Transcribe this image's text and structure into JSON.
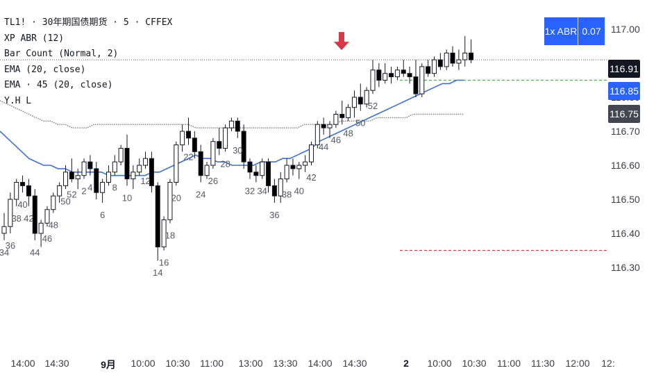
{
  "legend": {
    "symbol": "TL1! · 30年期国债期货 · 5 · CFFEX",
    "ind1": "XP ABR (12)",
    "ind2": "Bar Count (Normal, 2)",
    "ind3": "EMA (20, close)",
    "ind4": "EMA · 45 (20, close)",
    "ind5": "Y.H L"
  },
  "abr_badge": {
    "label": "1x ABR",
    "value": "0.07",
    "color": "#2962ff"
  },
  "price_tags": {
    "last": {
      "text": "116.91",
      "color": "#131722"
    },
    "ema20": {
      "text": "116.85",
      "color": "#2962ff"
    },
    "ema45": {
      "text": "116.75",
      "color": "#434651"
    }
  },
  "colors": {
    "up": "#ffffff",
    "down": "#000000",
    "ema20": "#3d6fd9",
    "ema45": "#787b86",
    "yhigh": "#4caf50",
    "ylow": "#e53945",
    "arrow": "#d93749",
    "count": "#555866"
  },
  "chart_data": {
    "type": "candlestick",
    "y_axis": {
      "range": [
        116.25,
        117.05
      ],
      "ticks": [
        "117.00",
        "116.90",
        "116.80",
        "116.70",
        "116.60",
        "116.50",
        "116.40",
        "116.30"
      ]
    },
    "x_axis": {
      "ticks": [
        "14:00",
        "14:30",
        "9月",
        "10:00",
        "10:30",
        "11:00",
        "13:00",
        "13:30",
        "14:00",
        "14:30",
        "2",
        "10:00",
        "10:30",
        "11:00",
        "11:30",
        "12:00",
        "12:"
      ]
    },
    "ohlc": [
      [
        116.4,
        116.46,
        116.38,
        116.42
      ],
      [
        116.42,
        116.52,
        116.4,
        116.5
      ],
      [
        116.5,
        116.56,
        116.48,
        116.55
      ],
      [
        116.55,
        116.57,
        116.52,
        116.54
      ],
      [
        116.54,
        116.56,
        116.48,
        116.51
      ],
      [
        116.51,
        116.53,
        116.38,
        116.4
      ],
      [
        116.4,
        116.44,
        116.36,
        116.43
      ],
      [
        116.43,
        116.48,
        116.42,
        116.47
      ],
      [
        116.47,
        116.52,
        116.46,
        116.51
      ],
      [
        116.51,
        116.55,
        116.49,
        116.54
      ],
      [
        116.54,
        116.6,
        116.53,
        116.58
      ],
      [
        116.58,
        116.62,
        116.55,
        116.56
      ],
      [
        116.56,
        116.59,
        116.53,
        116.57
      ],
      [
        116.57,
        116.62,
        116.56,
        116.61
      ],
      [
        116.61,
        116.63,
        116.57,
        116.59
      ],
      [
        116.59,
        116.61,
        116.5,
        116.52
      ],
      [
        116.52,
        116.56,
        116.49,
        116.55
      ],
      [
        116.55,
        116.6,
        116.54,
        116.58
      ],
      [
        116.58,
        116.63,
        116.57,
        116.61
      ],
      [
        116.61,
        116.66,
        116.6,
        116.65
      ],
      [
        116.65,
        116.69,
        116.54,
        116.56
      ],
      [
        116.56,
        116.6,
        116.53,
        116.58
      ],
      [
        116.58,
        116.62,
        116.57,
        116.6
      ],
      [
        116.6,
        116.64,
        116.59,
        116.62
      ],
      [
        116.62,
        116.64,
        116.52,
        116.54
      ],
      [
        116.54,
        116.55,
        116.32,
        116.36
      ],
      [
        116.36,
        116.45,
        116.35,
        116.44
      ],
      [
        116.44,
        116.56,
        116.43,
        116.55
      ],
      [
        116.55,
        116.67,
        116.54,
        116.66
      ],
      [
        116.66,
        116.72,
        116.64,
        116.7
      ],
      [
        116.7,
        116.74,
        116.66,
        116.68
      ],
      [
        116.68,
        116.7,
        116.62,
        116.64
      ],
      [
        116.64,
        116.66,
        116.55,
        116.57
      ],
      [
        116.57,
        116.61,
        116.56,
        116.6
      ],
      [
        116.6,
        116.68,
        116.59,
        116.67
      ],
      [
        116.67,
        116.71,
        116.63,
        116.65
      ],
      [
        116.65,
        116.72,
        116.64,
        116.71
      ],
      [
        116.71,
        116.74,
        116.7,
        116.73
      ],
      [
        116.73,
        116.74,
        116.68,
        116.7
      ],
      [
        116.7,
        116.72,
        116.59,
        116.61
      ],
      [
        116.61,
        116.62,
        116.56,
        116.58
      ],
      [
        116.58,
        116.6,
        116.55,
        116.57
      ],
      [
        116.57,
        116.62,
        116.56,
        116.61
      ],
      [
        116.61,
        116.62,
        116.52,
        116.54
      ],
      [
        116.54,
        116.56,
        116.49,
        116.51
      ],
      [
        116.51,
        116.58,
        116.49,
        116.56
      ],
      [
        116.56,
        116.62,
        116.55,
        116.6
      ],
      [
        116.6,
        116.62,
        116.57,
        116.59
      ],
      [
        116.59,
        116.61,
        116.56,
        116.6
      ],
      [
        116.6,
        116.63,
        116.58,
        116.61
      ],
      [
        116.61,
        116.67,
        116.6,
        116.66
      ],
      [
        116.66,
        116.73,
        116.65,
        116.72
      ],
      [
        116.72,
        116.74,
        116.69,
        116.71
      ],
      [
        116.71,
        116.73,
        116.68,
        116.72
      ],
      [
        116.72,
        116.76,
        116.71,
        116.75
      ],
      [
        116.75,
        116.79,
        116.72,
        116.74
      ],
      [
        116.74,
        116.78,
        116.73,
        116.77
      ],
      [
        116.77,
        116.82,
        116.74,
        116.8
      ],
      [
        116.8,
        116.84,
        116.76,
        116.78
      ],
      [
        116.78,
        116.83,
        116.77,
        116.82
      ],
      [
        116.82,
        116.91,
        116.81,
        116.88
      ],
      [
        116.88,
        116.9,
        116.83,
        116.85
      ],
      [
        116.85,
        116.9,
        116.84,
        116.87
      ],
      [
        116.87,
        116.89,
        116.84,
        116.86
      ],
      [
        116.86,
        116.89,
        116.85,
        116.88
      ],
      [
        116.88,
        116.91,
        116.86,
        116.87
      ],
      [
        116.87,
        116.89,
        116.84,
        116.86
      ],
      [
        116.86,
        116.91,
        116.8,
        116.81
      ],
      [
        116.81,
        116.9,
        116.8,
        116.89
      ],
      [
        116.89,
        116.91,
        116.86,
        116.87
      ],
      [
        116.87,
        116.92,
        116.86,
        116.91
      ],
      [
        116.91,
        116.93,
        116.88,
        116.89
      ],
      [
        116.89,
        116.94,
        116.88,
        116.93
      ],
      [
        116.93,
        116.95,
        116.89,
        116.9
      ],
      [
        116.9,
        116.94,
        116.88,
        116.91
      ],
      [
        116.91,
        116.98,
        116.89,
        116.93
      ],
      [
        116.93,
        116.97,
        116.9,
        116.91
      ]
    ],
    "bar_counts": [
      {
        "bar": 0,
        "text": "34"
      },
      {
        "bar": 1,
        "text": "36"
      },
      {
        "bar": 2,
        "text": "38"
      },
      {
        "bar": 3,
        "text": "40"
      },
      {
        "bar": 4,
        "text": "42"
      },
      {
        "bar": 5,
        "text": "44"
      },
      {
        "bar": 7,
        "text": "46"
      },
      {
        "bar": 8,
        "text": "48"
      },
      {
        "bar": 10,
        "text": "50"
      },
      {
        "bar": 11,
        "text": "52"
      },
      {
        "bar": 13,
        "text": "2"
      },
      {
        "bar": 14,
        "text": "4"
      },
      {
        "bar": 16,
        "text": "6"
      },
      {
        "bar": 18,
        "text": "8"
      },
      {
        "bar": 20,
        "text": "10"
      },
      {
        "bar": 23,
        "text": "12"
      },
      {
        "bar": 25,
        "text": "14"
      },
      {
        "bar": 26,
        "text": "16"
      },
      {
        "bar": 27,
        "text": "18"
      },
      {
        "bar": 28,
        "text": "20"
      },
      {
        "bar": 30,
        "text": "22"
      },
      {
        "bar": 32,
        "text": "24"
      },
      {
        "bar": 34,
        "text": "26"
      },
      {
        "bar": 36,
        "text": "28"
      },
      {
        "bar": 38,
        "text": "30"
      },
      {
        "bar": 40,
        "text": "32"
      },
      {
        "bar": 42,
        "text": "34"
      },
      {
        "bar": 44,
        "text": "36"
      },
      {
        "bar": 46,
        "text": "38"
      },
      {
        "bar": 48,
        "text": "40"
      },
      {
        "bar": 50,
        "text": "42"
      },
      {
        "bar": 52,
        "text": "44"
      },
      {
        "bar": 54,
        "text": "46"
      },
      {
        "bar": 56,
        "text": "48"
      },
      {
        "bar": 58,
        "text": "50"
      },
      {
        "bar": 60,
        "text": "52"
      }
    ],
    "ema20": [
      116.7,
      116.68,
      116.66,
      116.64,
      116.62,
      116.61,
      116.6,
      116.6,
      116.59,
      116.59,
      116.58,
      116.58,
      116.58,
      116.58,
      116.58,
      116.57,
      116.57,
      116.57,
      116.57,
      116.57,
      116.57,
      116.58,
      116.58,
      116.59,
      116.6,
      116.61,
      116.62,
      116.63,
      116.62,
      116.62,
      116.61,
      116.61,
      116.6,
      116.6,
      116.6,
      116.6,
      116.61,
      116.61,
      116.61,
      116.62,
      116.62,
      116.63,
      116.64,
      116.65,
      116.67,
      116.68,
      116.69,
      116.7,
      116.71,
      116.72,
      116.73,
      116.74,
      116.75,
      116.76,
      116.77,
      116.78,
      116.79,
      116.8,
      116.81,
      116.82,
      116.83,
      116.84,
      116.84,
      116.85,
      116.85
    ],
    "ema45": [
      116.79,
      116.78,
      116.77,
      116.76,
      116.75,
      116.74,
      116.73,
      116.73,
      116.72,
      116.72,
      116.71,
      116.71,
      116.71,
      116.72,
      116.72,
      116.72,
      116.72,
      116.72,
      116.72,
      116.72,
      116.72,
      116.72,
      116.72,
      116.72,
      116.72,
      116.72,
      116.72,
      116.71,
      116.71,
      116.71,
      116.71,
      116.71,
      116.71,
      116.71,
      116.71,
      116.71,
      116.71,
      116.71,
      116.71,
      116.71,
      116.71,
      116.71,
      116.72,
      116.72,
      116.72,
      116.72,
      116.72,
      116.73,
      116.73,
      116.73,
      116.73,
      116.73,
      116.74,
      116.74,
      116.74,
      116.74,
      116.74,
      116.75,
      116.75,
      116.75,
      116.75,
      116.75,
      116.75,
      116.75,
      116.75
    ],
    "levels": {
      "last": 116.91,
      "yesterday_high": 116.85,
      "yesterday_low": 116.35
    },
    "marker": {
      "type": "down-arrow",
      "bar": 60
    }
  }
}
